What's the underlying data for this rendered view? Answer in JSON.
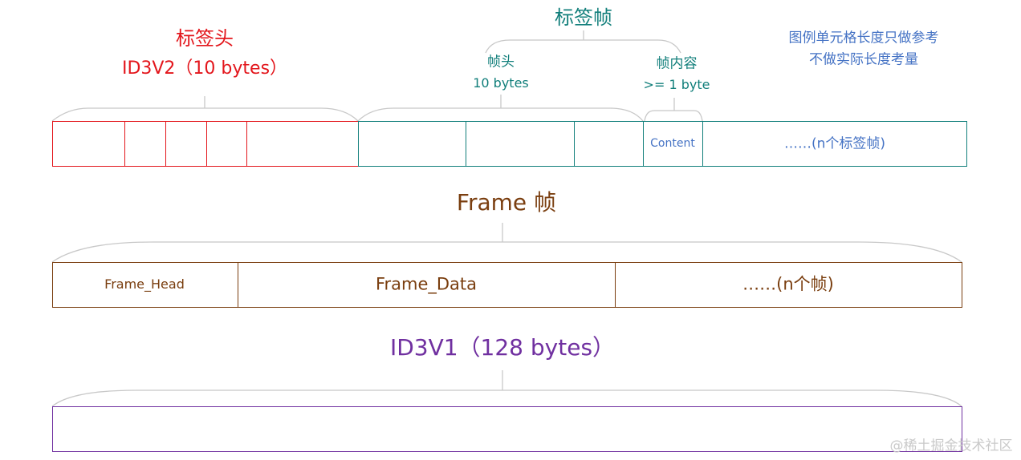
{
  "colors": {
    "tag_header": "#e3161c",
    "tag_frame": "#127f7b",
    "note": "#4472c4",
    "frame": "#7a3e0f",
    "id3v1": "#7030a0",
    "brace": "#c8c8c8",
    "watermark": "#c9c9c9"
  },
  "tag_header": {
    "title": "标签头",
    "subtitle": "ID3V2（10 bytes）"
  },
  "tag_frame": {
    "title": "标签帧",
    "frame_head": {
      "label": "帧头",
      "size": "10 bytes"
    },
    "frame_content": {
      "label": "帧内容",
      "size": ">= 1 byte"
    },
    "content_cell": "Content",
    "more_cell": "……(n个标签帧)"
  },
  "note": {
    "line1": "图例单元格长度只做参考",
    "line2": "不做实际长度考量"
  },
  "frame": {
    "title": "Frame 帧",
    "cells": [
      "Frame_Head",
      "Frame_Data",
      "……(n个帧)"
    ]
  },
  "id3v1": {
    "title": "ID3V1（128 bytes）"
  },
  "watermark": "@稀土掘金技术社区"
}
